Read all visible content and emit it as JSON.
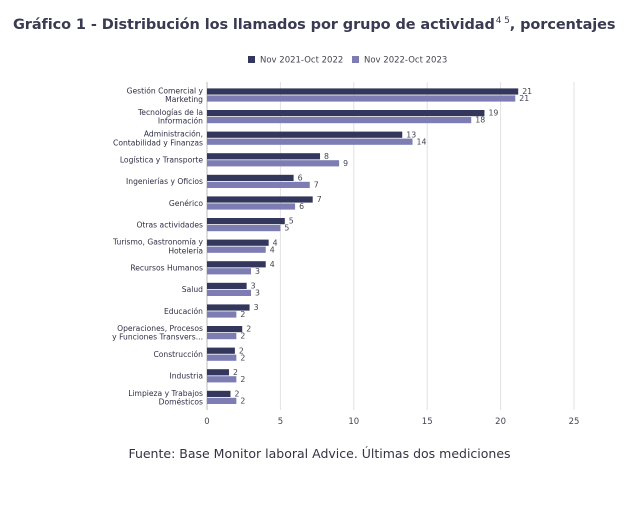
{
  "header": {
    "title": "Gráfico 1 - Distribución los llamados por grupo de actividad",
    "title_superscript": "4 5",
    "title_suffix": ", porcentajes"
  },
  "footer": {
    "source": "Fuente: Base Monitor laboral Advice. Últimas dos mediciones"
  },
  "chart_data": {
    "type": "bar",
    "orientation": "horizontal",
    "title": "Gráfico 1 - Distribución los llamados por grupo de actividad, porcentajes",
    "xlabel": "",
    "ylabel": "",
    "xlim": [
      0,
      25
    ],
    "xticks": [
      0,
      5,
      10,
      15,
      20,
      25
    ],
    "grid": "vertical",
    "legend_position": "top",
    "categories": [
      [
        "Gestión Comercial y",
        "Marketing"
      ],
      [
        "Tecnologías de la",
        "Información"
      ],
      [
        "Administración,",
        "Contabilidad y Finanzas"
      ],
      [
        "Logística y Transporte"
      ],
      [
        "Ingenierías y Oficios"
      ],
      [
        "Genérico"
      ],
      [
        "Otras actividades"
      ],
      [
        "Turismo, Gastronomía y",
        "Hotelería"
      ],
      [
        "Recursos Humanos"
      ],
      [
        "Salud"
      ],
      [
        "Educación"
      ],
      [
        "Operaciones, Procesos",
        "y Funciones Transvers..."
      ],
      [
        "Construcción"
      ],
      [
        "Industria"
      ],
      [
        "Limpieza y Trabajos",
        "Domésticos"
      ]
    ],
    "series": [
      {
        "name": "Nov 2021-Oct 2022",
        "color": "#34375c",
        "values": [
          21.2,
          18.9,
          13.3,
          7.7,
          5.9,
          7.2,
          5.3,
          4.2,
          4.0,
          2.7,
          2.9,
          2.4,
          1.9,
          1.5,
          1.6
        ],
        "labels": [
          "21",
          "19",
          "13",
          "8",
          "6",
          "7",
          "5",
          "4",
          "4",
          "3",
          "3",
          "2",
          "2",
          "2",
          "2"
        ]
      },
      {
        "name": "Nov 2022-Oct 2023",
        "color": "#7d7db4",
        "values": [
          21.0,
          18.0,
          14.0,
          9.0,
          7.0,
          6.0,
          5.0,
          4.0,
          3.0,
          3.0,
          2.0,
          2.0,
          2.0,
          2.0,
          2.0
        ],
        "labels": [
          "21",
          "18",
          "14",
          "9",
          "7",
          "6",
          "5",
          "4",
          "3",
          "3",
          "2",
          "2",
          "2",
          "2",
          "2"
        ]
      }
    ]
  }
}
